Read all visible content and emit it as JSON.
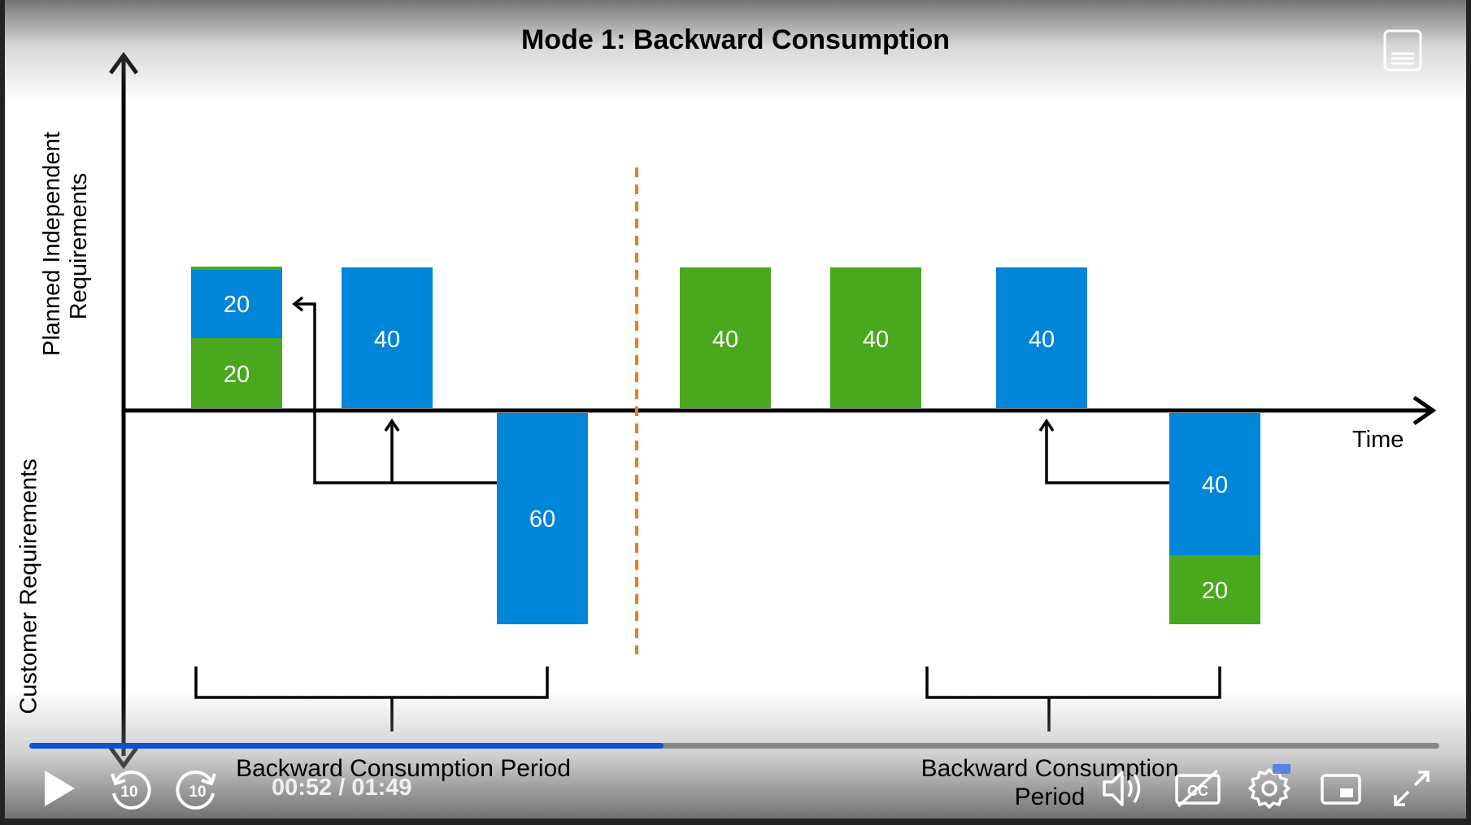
{
  "slide": {
    "title": "Mode 1: Backward Consumption",
    "y_axis_top_label_line1": "Planned Independent",
    "y_axis_top_label_line2": "Requirements",
    "y_axis_bottom_label": "Customer Requirements",
    "x_axis_label": "Time",
    "period_label_1": "Backward Consumption Period",
    "period_label_2_line1": "Backward Consumption",
    "period_label_2_line2": "Period",
    "colors": {
      "blue": "#0085d8",
      "green": "#4aa81e",
      "divider": "#f07a20"
    },
    "bars": [
      {
        "id": "pir-1",
        "segments": [
          {
            "value": "20",
            "color": "green"
          },
          {
            "value": "20",
            "color": "blue"
          }
        ]
      },
      {
        "id": "pir-2",
        "segments": [
          {
            "value": "40",
            "color": "blue"
          }
        ]
      },
      {
        "id": "cr-1",
        "segments": [
          {
            "value": "60",
            "color": "blue"
          }
        ]
      },
      {
        "id": "pir-3",
        "segments": [
          {
            "value": "40",
            "color": "green"
          }
        ]
      },
      {
        "id": "pir-4",
        "segments": [
          {
            "value": "40",
            "color": "green"
          }
        ]
      },
      {
        "id": "pir-5",
        "segments": [
          {
            "value": "40",
            "color": "blue"
          }
        ]
      },
      {
        "id": "cr-2",
        "segments": [
          {
            "value": "40",
            "color": "blue"
          },
          {
            "value": "20",
            "color": "green"
          }
        ]
      }
    ]
  },
  "player": {
    "time_readout": "00:52 / 01:49",
    "progress": 0.45,
    "icons": {
      "play": "play-icon",
      "rewind": "rewind-10-icon",
      "forward": "forward-10-icon",
      "volume": "volume-icon",
      "captions": "captions-off-icon",
      "settings": "gear-icon",
      "pip": "picture-in-picture-icon",
      "fullscreen": "fullscreen-icon",
      "menu": "menu-icon"
    },
    "skip_seconds": "10"
  }
}
